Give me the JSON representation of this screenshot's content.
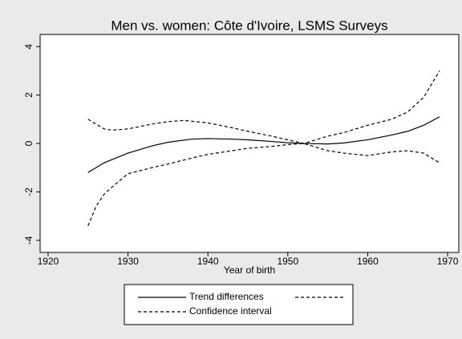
{
  "chart_data": {
    "type": "line",
    "title": "Men vs. women: Côte d'Ivoire, LSMS Surveys",
    "x_label": "Year of birth",
    "xlim": [
      1919,
      1971.4
    ],
    "xticks": [
      1920,
      1930,
      1940,
      1950,
      1960,
      1970
    ],
    "ylim": [
      -4.5,
      4.5
    ],
    "yticks": [
      -4,
      -2,
      0,
      2,
      4
    ],
    "grid": false,
    "legend": "bottom",
    "series": [
      {
        "name": "Trend differences",
        "color": "#000000",
        "dash": false,
        "x": [
          1925,
          1927,
          1930,
          1933,
          1935,
          1938,
          1940,
          1943,
          1945,
          1948,
          1950,
          1952,
          1955,
          1957,
          1960,
          1963,
          1965,
          1967,
          1969
        ],
        "values": [
          -1.2,
          -0.8,
          -0.4,
          -0.1,
          0.05,
          0.18,
          0.2,
          0.18,
          0.15,
          0.08,
          0.03,
          0,
          -0.02,
          0.02,
          0.15,
          0.35,
          0.5,
          0.75,
          1.1
        ]
      },
      {
        "color": "#000000",
        "dash": true,
        "x": [
          1925,
          1927,
          1928,
          1930,
          1933,
          1935,
          1937,
          1940,
          1943,
          1945,
          1948,
          1950,
          1952,
          1955,
          1957,
          1960,
          1963,
          1965,
          1967,
          1969
        ],
        "values": [
          1.0,
          0.6,
          0.55,
          0.6,
          0.8,
          0.9,
          0.95,
          0.85,
          0.65,
          0.5,
          0.3,
          0.15,
          0,
          0.3,
          0.45,
          0.75,
          1.0,
          1.3,
          1.9,
          3.0
        ]
      },
      {
        "name": "Confidence interval",
        "color": "#000000",
        "dash": true,
        "x": [
          1925,
          1926,
          1927,
          1928,
          1930,
          1933,
          1935,
          1938,
          1940,
          1943,
          1945,
          1948,
          1950,
          1952,
          1955,
          1957,
          1960,
          1963,
          1965,
          1967,
          1969
        ],
        "values": [
          -3.4,
          -2.6,
          -2.1,
          -1.8,
          -1.25,
          -1.0,
          -0.85,
          -0.6,
          -0.45,
          -0.3,
          -0.2,
          -0.12,
          -0.05,
          0,
          -0.3,
          -0.4,
          -0.5,
          -0.35,
          -0.3,
          -0.4,
          -0.8
        ]
      }
    ]
  }
}
